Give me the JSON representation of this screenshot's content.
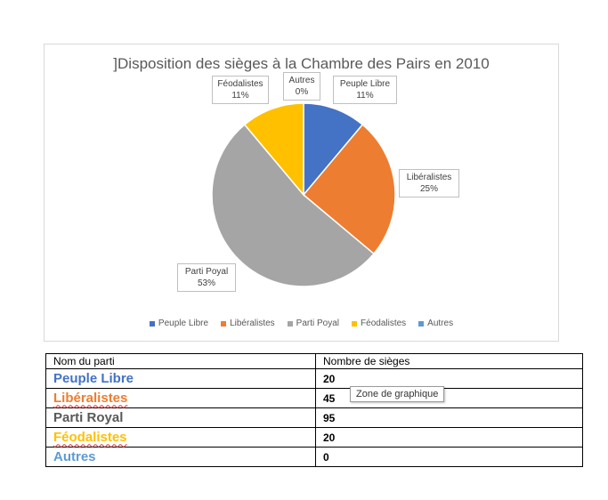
{
  "chart_data": {
    "type": "pie",
    "title": "]Disposition des sièges à la Chambre des Pairs en 2010",
    "categories": [
      "Peuple Libre",
      "Libéralistes",
      "Parti Poyal",
      "Féodalistes",
      "Autres"
    ],
    "values": [
      20,
      45,
      95,
      20,
      0
    ],
    "data_labels": [
      {
        "name": "Peuple Libre",
        "pct": "11%"
      },
      {
        "name": "Libéralistes",
        "pct": "25%"
      },
      {
        "name": "Parti Poyal",
        "pct": "53%"
      },
      {
        "name": "Féodalistes",
        "pct": "11%"
      },
      {
        "name": "Autres",
        "pct": "0%"
      }
    ],
    "colors": [
      "#4472c4",
      "#ed7d31",
      "#a5a5a5",
      "#ffc000",
      "#5b9bd5"
    ],
    "legend_position": "bottom"
  },
  "table": {
    "headers": [
      "Nom du parti",
      "Nombre de sièges"
    ],
    "rows": [
      {
        "name": "Peuple Libre",
        "seats": "20",
        "color": "#4472c4"
      },
      {
        "name": "Libéralistes",
        "seats": "45",
        "color": "#ed7d31"
      },
      {
        "name": "Parti Royal",
        "seats": "95",
        "color": "#595959"
      },
      {
        "name": "Féodalistes",
        "seats": "20",
        "color": "#ffc000"
      },
      {
        "name": "Autres",
        "seats": "0",
        "color": "#5b9bd5"
      }
    ]
  },
  "tooltip": {
    "text": "Zone de graphique"
  }
}
